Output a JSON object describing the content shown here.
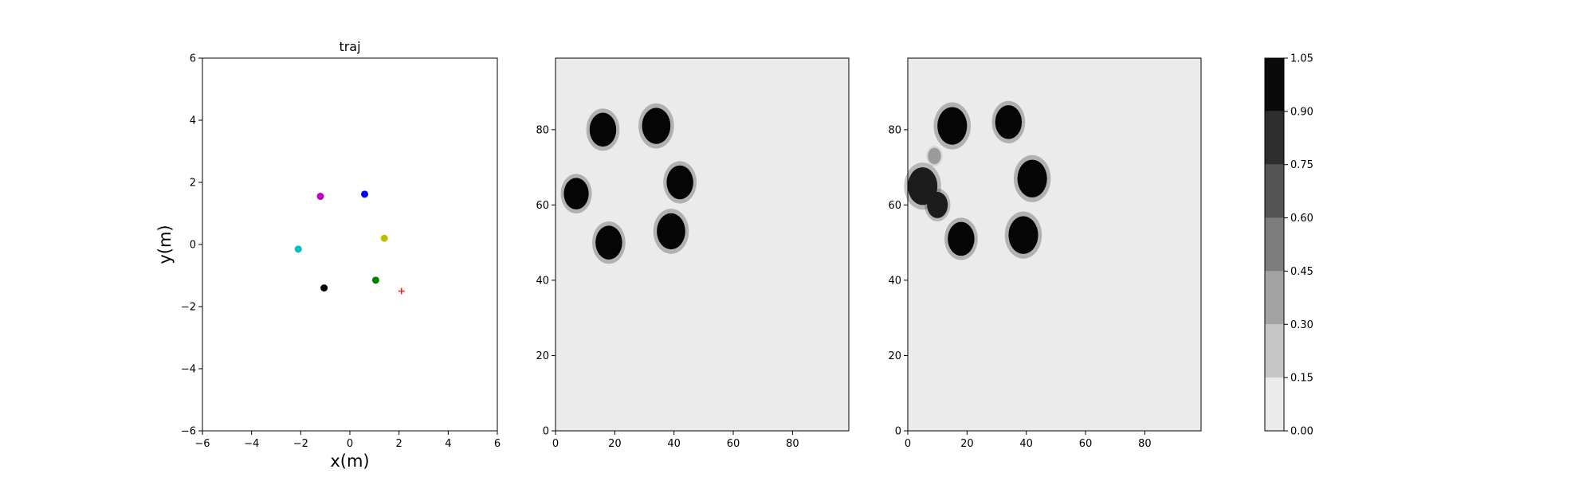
{
  "chart_data": [
    {
      "type": "scatter",
      "title": "traj",
      "xlabel": "x(m)",
      "ylabel": "y(m)",
      "xlim": [
        -6,
        6
      ],
      "ylim": [
        -6,
        6
      ],
      "xticks": [
        -6,
        -4,
        -2,
        0,
        2,
        4,
        6
      ],
      "yticks": [
        -6,
        -4,
        -2,
        0,
        2,
        4,
        6
      ],
      "grid": false,
      "points": [
        {
          "x": -1.2,
          "y": 1.55,
          "color": "#bf00bf",
          "marker": "circle"
        },
        {
          "x": 0.6,
          "y": 1.62,
          "color": "#0000ff",
          "marker": "circle"
        },
        {
          "x": 1.4,
          "y": 0.2,
          "color": "#bfbf00",
          "marker": "circle"
        },
        {
          "x": -2.1,
          "y": -0.15,
          "color": "#00bfbf",
          "marker": "circle"
        },
        {
          "x": 1.05,
          "y": -1.15,
          "color": "#008000",
          "marker": "circle"
        },
        {
          "x": -1.05,
          "y": -1.4,
          "color": "#000000",
          "marker": "circle"
        },
        {
          "x": 2.1,
          "y": -1.5,
          "color": "#ff0000",
          "marker": "plus"
        }
      ]
    },
    {
      "type": "heatmap",
      "title": "",
      "xlim": [
        0,
        99
      ],
      "ylim": [
        0,
        99
      ],
      "xticks": [
        0,
        20,
        40,
        60,
        80
      ],
      "yticks": [
        0,
        20,
        40,
        60,
        80
      ],
      "background_value": 0.0,
      "blobs": [
        {
          "x": 16,
          "y": 80,
          "r": 4.5,
          "value": 1.0
        },
        {
          "x": 34,
          "y": 81,
          "r": 4.8,
          "value": 1.0
        },
        {
          "x": 42,
          "y": 66,
          "r": 4.5,
          "value": 1.0
        },
        {
          "x": 7,
          "y": 63,
          "r": 4.2,
          "value": 1.0
        },
        {
          "x": 39,
          "y": 53,
          "r": 4.8,
          "value": 1.0
        },
        {
          "x": 18,
          "y": 50,
          "r": 4.5,
          "value": 1.0
        }
      ]
    },
    {
      "type": "heatmap",
      "title": "",
      "xlim": [
        0,
        99
      ],
      "ylim": [
        0,
        99
      ],
      "xticks": [
        0,
        20,
        40,
        60,
        80
      ],
      "yticks": [
        0,
        20,
        40,
        60,
        80
      ],
      "background_value": 0.0,
      "blobs": [
        {
          "x": 15,
          "y": 81,
          "r": 5.0,
          "value": 1.0
        },
        {
          "x": 34,
          "y": 82,
          "r": 4.5,
          "value": 1.0
        },
        {
          "x": 42,
          "y": 67,
          "r": 5.0,
          "value": 1.0
        },
        {
          "x": 5,
          "y": 65,
          "r": 5.0,
          "value": 0.9
        },
        {
          "x": 10,
          "y": 60,
          "r": 3.5,
          "value": 0.9
        },
        {
          "x": 18,
          "y": 51,
          "r": 4.5,
          "value": 1.0
        },
        {
          "x": 39,
          "y": 52,
          "r": 5.0,
          "value": 1.0
        },
        {
          "x": 9,
          "y": 73,
          "r": 2.2,
          "value": 0.35
        }
      ]
    },
    {
      "type": "colorbar",
      "levels": [
        0.0,
        0.15,
        0.3,
        0.45,
        0.6,
        0.75,
        0.9,
        1.05
      ],
      "tick_labels": [
        "0.00",
        "0.15",
        "0.30",
        "0.45",
        "0.60",
        "0.75",
        "0.90",
        "1.05"
      ],
      "colors": [
        "#ebebeb",
        "#c6c6c6",
        "#a3a3a3",
        "#7d7d7d",
        "#555555",
        "#2e2e2e",
        "#0a0a0a"
      ]
    }
  ]
}
